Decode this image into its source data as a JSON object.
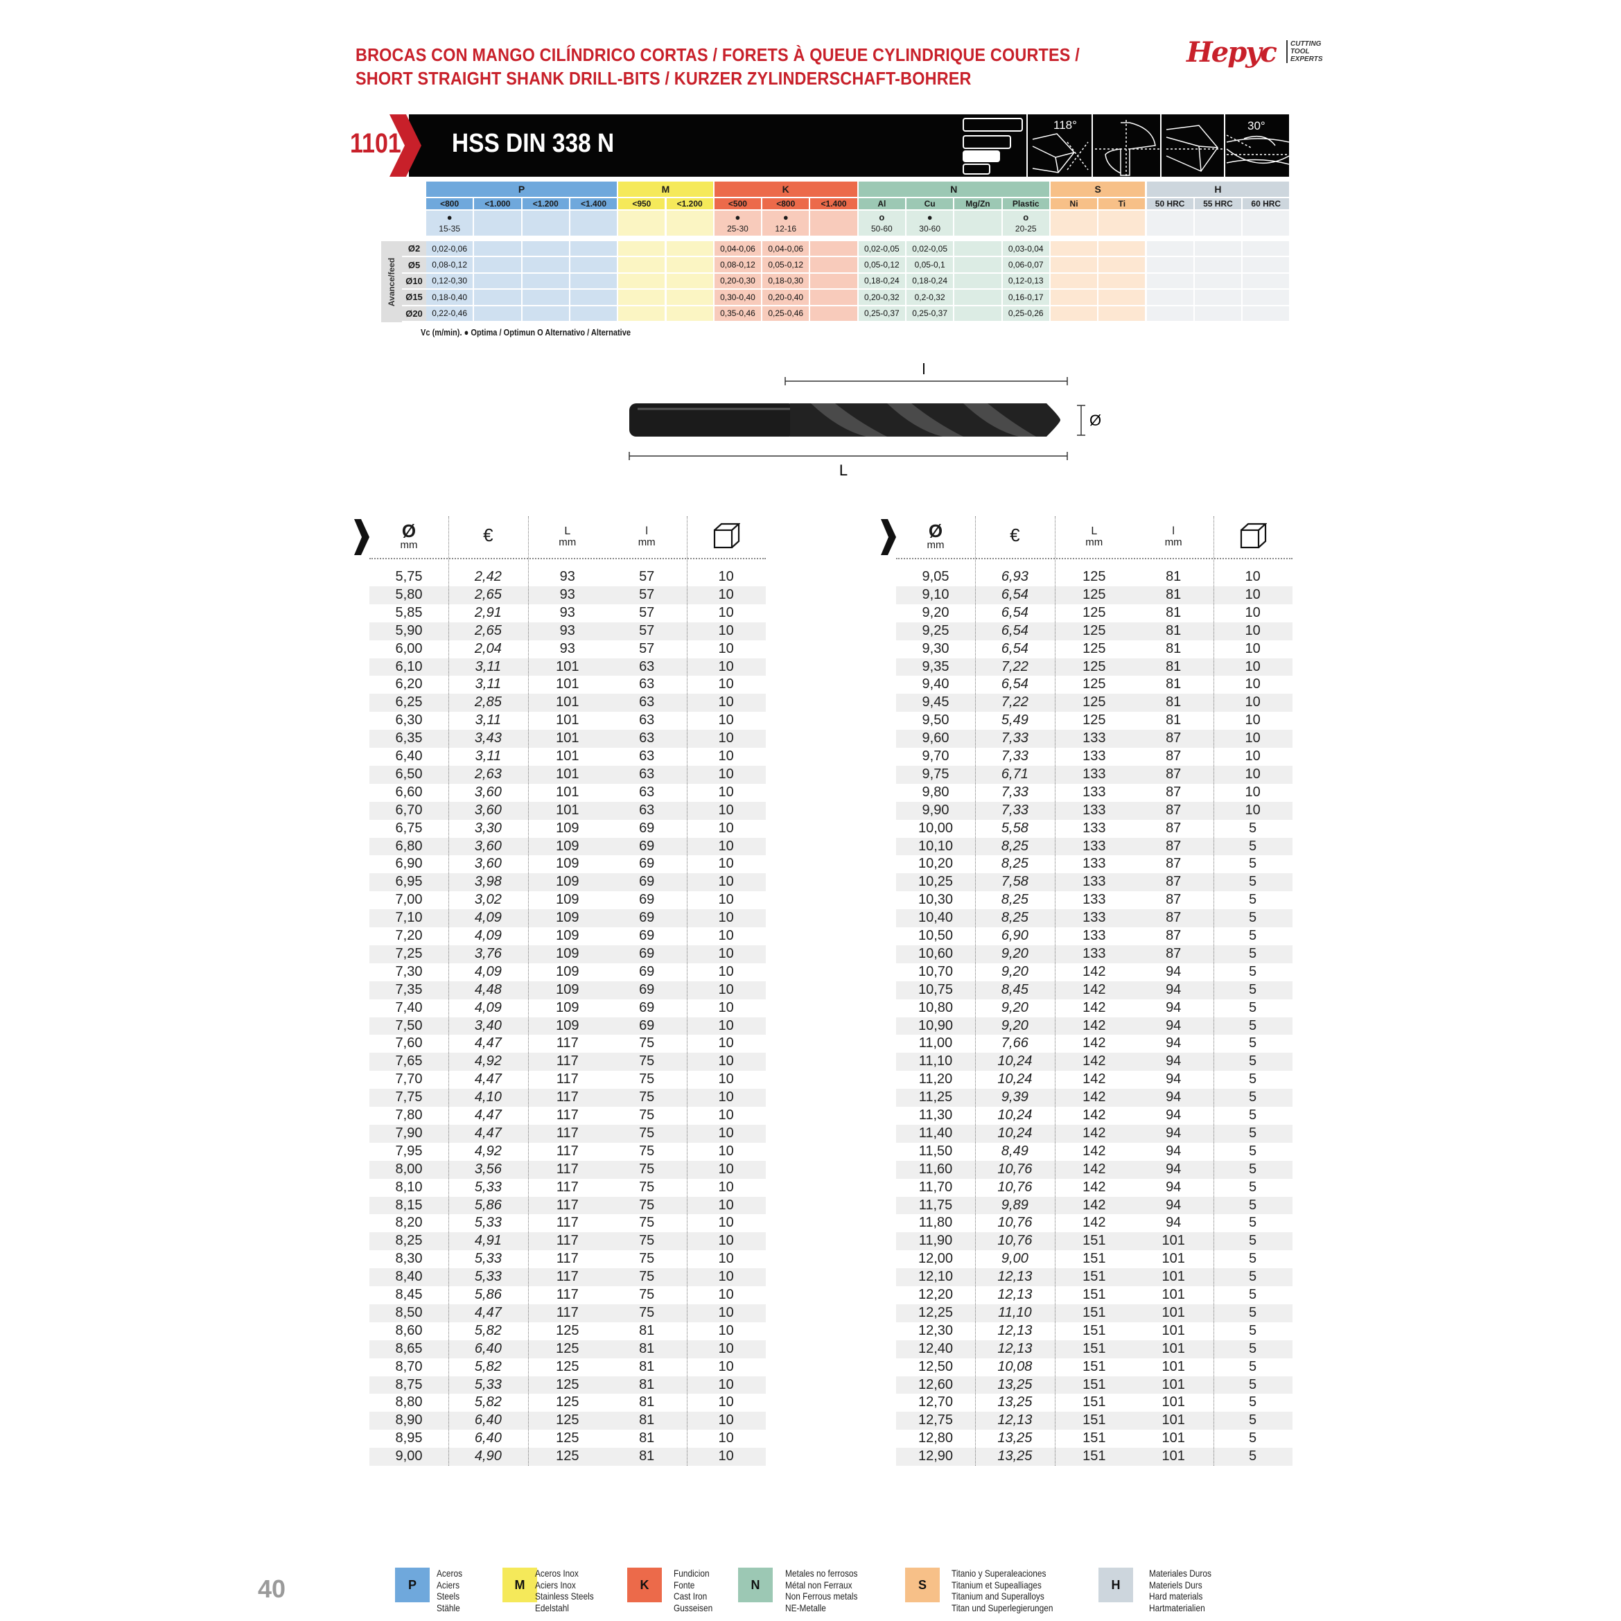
{
  "header": {
    "title_line1": "BROCAS CON MANGO CILÍNDRICO CORTAS / FORETS À QUEUE CYLINDRIQUE COURTES /",
    "title_line2": "SHORT STRAIGHT SHANK DRILL-BITS / KURZER ZYLINDERSCHAFT-BOHRER",
    "logo_text": "Hepyc",
    "logo_tagline": [
      "CUTTING",
      "TOOL",
      "EXPERTS"
    ],
    "brand_color": "#c8202a"
  },
  "banner": {
    "code": "1101",
    "product": "HSS DIN 338 N",
    "icons": [
      "length-series-icon",
      "point-angle-118-icon",
      "split-point-cross-section-icon",
      "drill-tip-icon",
      "helix-angle-30-icon"
    ],
    "point_angle": "118°",
    "helix_angle": "30°"
  },
  "materials": {
    "groups": [
      {
        "label": "P",
        "color": "#6fa8dc",
        "light": "#cfe0f0",
        "cols": [
          "<800",
          "<1.000",
          "<1.200",
          "<1.400"
        ]
      },
      {
        "label": "M",
        "color": "#f5e95a",
        "light": "#fbf5c3",
        "cols": [
          "<950",
          "<1.200"
        ]
      },
      {
        "label": "K",
        "color": "#ec6a4a",
        "light": "#f8cbbb",
        "cols": [
          "<500",
          "<800",
          "<1.400"
        ]
      },
      {
        "label": "N",
        "color": "#9cc8b4",
        "light": "#dcece4",
        "cols": [
          "Al",
          "Cu",
          "Mg/Zn",
          "Plastic"
        ]
      },
      {
        "label": "S",
        "color": "#f7c088",
        "light": "#fde7d2",
        "cols": [
          "Ni",
          "Ti"
        ]
      },
      {
        "label": "H",
        "color": "#cdd6dd",
        "light": "#eff1f3",
        "cols": [
          "50 HRC",
          "55 HRC",
          "60 HRC"
        ]
      }
    ],
    "vc": [
      {
        "mark": "optimal",
        "value": "15-35"
      },
      null,
      null,
      null,
      null,
      null,
      {
        "mark": "optimal",
        "value": "25-30"
      },
      {
        "mark": "optimal",
        "value": "12-16"
      },
      null,
      {
        "mark": "alternative",
        "value": "50-60"
      },
      {
        "mark": "optimal",
        "value": "30-60"
      },
      null,
      {
        "mark": "alternative",
        "value": "20-25"
      },
      null,
      null,
      null,
      null,
      null
    ],
    "feed_label": "Avance/feed",
    "feed_rows": [
      {
        "dia": "Ø2",
        "values": [
          "0,02-0,06",
          "",
          "",
          "",
          "",
          "",
          "0,04-0,06",
          "0,04-0,06",
          "",
          "0,02-0,05",
          "0,02-0,05",
          "",
          "0,03-0,04",
          "",
          "",
          "",
          "",
          ""
        ]
      },
      {
        "dia": "Ø5",
        "values": [
          "0,08-0,12",
          "",
          "",
          "",
          "",
          "",
          "0,08-0,12",
          "0,05-0,12",
          "",
          "0,05-0,12",
          "0,05-0,1",
          "",
          "0,06-0,07",
          "",
          "",
          "",
          "",
          ""
        ]
      },
      {
        "dia": "Ø10",
        "values": [
          "0,12-0,30",
          "",
          "",
          "",
          "",
          "",
          "0,20-0,30",
          "0,18-0,30",
          "",
          "0,18-0,24",
          "0,18-0,24",
          "",
          "0,12-0,13",
          "",
          "",
          "",
          "",
          ""
        ]
      },
      {
        "dia": "Ø15",
        "values": [
          "0,18-0,40",
          "",
          "",
          "",
          "",
          "",
          "0,30-0,40",
          "0,20-0,40",
          "",
          "0,20-0,32",
          "0,2-0,32",
          "",
          "0,16-0,17",
          "",
          "",
          "",
          "",
          ""
        ]
      },
      {
        "dia": "Ø20",
        "values": [
          "0,22-0,46",
          "",
          "",
          "",
          "",
          "",
          "0,35-0,46",
          "0,25-0,46",
          "",
          "0,25-0,37",
          "0,25-0,37",
          "",
          "0,25-0,26",
          "",
          "",
          "",
          "",
          ""
        ]
      }
    ],
    "legend_note": "Vc (m/min). ● Optima / Optimun  O Alternativo / Alternative"
  },
  "drawing": {
    "label_l": "l",
    "label_L": "L",
    "label_dia": "Ø"
  },
  "product_table": {
    "headers": [
      {
        "symbol": "Ø",
        "unit": "mm"
      },
      {
        "symbol": "€",
        "unit": ""
      },
      {
        "symbol": "L",
        "unit": "mm"
      },
      {
        "symbol": "l",
        "unit": "mm"
      },
      {
        "symbol": "package-icon",
        "unit": ""
      }
    ],
    "left_rows": [
      [
        "5,75",
        "2,42",
        "93",
        "57",
        "10"
      ],
      [
        "5,80",
        "2,65",
        "93",
        "57",
        "10"
      ],
      [
        "5,85",
        "2,91",
        "93",
        "57",
        "10"
      ],
      [
        "5,90",
        "2,65",
        "93",
        "57",
        "10"
      ],
      [
        "6,00",
        "2,04",
        "93",
        "57",
        "10"
      ],
      [
        "6,10",
        "3,11",
        "101",
        "63",
        "10"
      ],
      [
        "6,20",
        "3,11",
        "101",
        "63",
        "10"
      ],
      [
        "6,25",
        "2,85",
        "101",
        "63",
        "10"
      ],
      [
        "6,30",
        "3,11",
        "101",
        "63",
        "10"
      ],
      [
        "6,35",
        "3,43",
        "101",
        "63",
        "10"
      ],
      [
        "6,40",
        "3,11",
        "101",
        "63",
        "10"
      ],
      [
        "6,50",
        "2,63",
        "101",
        "63",
        "10"
      ],
      [
        "6,60",
        "3,60",
        "101",
        "63",
        "10"
      ],
      [
        "6,70",
        "3,60",
        "101",
        "63",
        "10"
      ],
      [
        "6,75",
        "3,30",
        "109",
        "69",
        "10"
      ],
      [
        "6,80",
        "3,60",
        "109",
        "69",
        "10"
      ],
      [
        "6,90",
        "3,60",
        "109",
        "69",
        "10"
      ],
      [
        "6,95",
        "3,98",
        "109",
        "69",
        "10"
      ],
      [
        "7,00",
        "3,02",
        "109",
        "69",
        "10"
      ],
      [
        "7,10",
        "4,09",
        "109",
        "69",
        "10"
      ],
      [
        "7,20",
        "4,09",
        "109",
        "69",
        "10"
      ],
      [
        "7,25",
        "3,76",
        "109",
        "69",
        "10"
      ],
      [
        "7,30",
        "4,09",
        "109",
        "69",
        "10"
      ],
      [
        "7,35",
        "4,48",
        "109",
        "69",
        "10"
      ],
      [
        "7,40",
        "4,09",
        "109",
        "69",
        "10"
      ],
      [
        "7,50",
        "3,40",
        "109",
        "69",
        "10"
      ],
      [
        "7,60",
        "4,47",
        "117",
        "75",
        "10"
      ],
      [
        "7,65",
        "4,92",
        "117",
        "75",
        "10"
      ],
      [
        "7,70",
        "4,47",
        "117",
        "75",
        "10"
      ],
      [
        "7,75",
        "4,10",
        "117",
        "75",
        "10"
      ],
      [
        "7,80",
        "4,47",
        "117",
        "75",
        "10"
      ],
      [
        "7,90",
        "4,47",
        "117",
        "75",
        "10"
      ],
      [
        "7,95",
        "4,92",
        "117",
        "75",
        "10"
      ],
      [
        "8,00",
        "3,56",
        "117",
        "75",
        "10"
      ],
      [
        "8,10",
        "5,33",
        "117",
        "75",
        "10"
      ],
      [
        "8,15",
        "5,86",
        "117",
        "75",
        "10"
      ],
      [
        "8,20",
        "5,33",
        "117",
        "75",
        "10"
      ],
      [
        "8,25",
        "4,91",
        "117",
        "75",
        "10"
      ],
      [
        "8,30",
        "5,33",
        "117",
        "75",
        "10"
      ],
      [
        "8,40",
        "5,33",
        "117",
        "75",
        "10"
      ],
      [
        "8,45",
        "5,86",
        "117",
        "75",
        "10"
      ],
      [
        "8,50",
        "4,47",
        "117",
        "75",
        "10"
      ],
      [
        "8,60",
        "5,82",
        "125",
        "81",
        "10"
      ],
      [
        "8,65",
        "6,40",
        "125",
        "81",
        "10"
      ],
      [
        "8,70",
        "5,82",
        "125",
        "81",
        "10"
      ],
      [
        "8,75",
        "5,33",
        "125",
        "81",
        "10"
      ],
      [
        "8,80",
        "5,82",
        "125",
        "81",
        "10"
      ],
      [
        "8,90",
        "6,40",
        "125",
        "81",
        "10"
      ],
      [
        "8,95",
        "6,40",
        "125",
        "81",
        "10"
      ],
      [
        "9,00",
        "4,90",
        "125",
        "81",
        "10"
      ]
    ],
    "right_rows": [
      [
        "9,05",
        "6,93",
        "125",
        "81",
        "10"
      ],
      [
        "9,10",
        "6,54",
        "125",
        "81",
        "10"
      ],
      [
        "9,20",
        "6,54",
        "125",
        "81",
        "10"
      ],
      [
        "9,25",
        "6,54",
        "125",
        "81",
        "10"
      ],
      [
        "9,30",
        "6,54",
        "125",
        "81",
        "10"
      ],
      [
        "9,35",
        "7,22",
        "125",
        "81",
        "10"
      ],
      [
        "9,40",
        "6,54",
        "125",
        "81",
        "10"
      ],
      [
        "9,45",
        "7,22",
        "125",
        "81",
        "10"
      ],
      [
        "9,50",
        "5,49",
        "125",
        "81",
        "10"
      ],
      [
        "9,60",
        "7,33",
        "133",
        "87",
        "10"
      ],
      [
        "9,70",
        "7,33",
        "133",
        "87",
        "10"
      ],
      [
        "9,75",
        "6,71",
        "133",
        "87",
        "10"
      ],
      [
        "9,80",
        "7,33",
        "133",
        "87",
        "10"
      ],
      [
        "9,90",
        "7,33",
        "133",
        "87",
        "10"
      ],
      [
        "10,00",
        "5,58",
        "133",
        "87",
        "5"
      ],
      [
        "10,10",
        "8,25",
        "133",
        "87",
        "5"
      ],
      [
        "10,20",
        "8,25",
        "133",
        "87",
        "5"
      ],
      [
        "10,25",
        "7,58",
        "133",
        "87",
        "5"
      ],
      [
        "10,30",
        "8,25",
        "133",
        "87",
        "5"
      ],
      [
        "10,40",
        "8,25",
        "133",
        "87",
        "5"
      ],
      [
        "10,50",
        "6,90",
        "133",
        "87",
        "5"
      ],
      [
        "10,60",
        "9,20",
        "133",
        "87",
        "5"
      ],
      [
        "10,70",
        "9,20",
        "142",
        "94",
        "5"
      ],
      [
        "10,75",
        "8,45",
        "142",
        "94",
        "5"
      ],
      [
        "10,80",
        "9,20",
        "142",
        "94",
        "5"
      ],
      [
        "10,90",
        "9,20",
        "142",
        "94",
        "5"
      ],
      [
        "11,00",
        "7,66",
        "142",
        "94",
        "5"
      ],
      [
        "11,10",
        "10,24",
        "142",
        "94",
        "5"
      ],
      [
        "11,20",
        "10,24",
        "142",
        "94",
        "5"
      ],
      [
        "11,25",
        "9,39",
        "142",
        "94",
        "5"
      ],
      [
        "11,30",
        "10,24",
        "142",
        "94",
        "5"
      ],
      [
        "11,40",
        "10,24",
        "142",
        "94",
        "5"
      ],
      [
        "11,50",
        "8,49",
        "142",
        "94",
        "5"
      ],
      [
        "11,60",
        "10,76",
        "142",
        "94",
        "5"
      ],
      [
        "11,70",
        "10,76",
        "142",
        "94",
        "5"
      ],
      [
        "11,75",
        "9,89",
        "142",
        "94",
        "5"
      ],
      [
        "11,80",
        "10,76",
        "142",
        "94",
        "5"
      ],
      [
        "11,90",
        "10,76",
        "151",
        "101",
        "5"
      ],
      [
        "12,00",
        "9,00",
        "151",
        "101",
        "5"
      ],
      [
        "12,10",
        "12,13",
        "151",
        "101",
        "5"
      ],
      [
        "12,20",
        "12,13",
        "151",
        "101",
        "5"
      ],
      [
        "12,25",
        "11,10",
        "151",
        "101",
        "5"
      ],
      [
        "12,30",
        "12,13",
        "151",
        "101",
        "5"
      ],
      [
        "12,40",
        "12,13",
        "151",
        "101",
        "5"
      ],
      [
        "12,50",
        "10,08",
        "151",
        "101",
        "5"
      ],
      [
        "12,60",
        "13,25",
        "151",
        "101",
        "5"
      ],
      [
        "12,70",
        "13,25",
        "151",
        "101",
        "5"
      ],
      [
        "12,75",
        "12,13",
        "151",
        "101",
        "5"
      ],
      [
        "12,80",
        "13,25",
        "151",
        "101",
        "5"
      ],
      [
        "12,90",
        "13,25",
        "151",
        "101",
        "5"
      ]
    ]
  },
  "footer": {
    "page_number": "40",
    "legend": [
      {
        "code": "P",
        "color": "#6fa8dc",
        "lines": [
          "Aceros",
          "Aciers",
          "Steels",
          "Stähle"
        ]
      },
      {
        "code": "M",
        "color": "#f5e95a",
        "lines": [
          "Aceros Inox",
          "Aciers Inox",
          "Stainless Steels",
          "Edelstahl"
        ]
      },
      {
        "code": "K",
        "color": "#ec6a4a",
        "lines": [
          "Fundicion",
          "Fonte",
          "Cast Iron",
          "Gusseisen"
        ]
      },
      {
        "code": "N",
        "color": "#9cc8b4",
        "lines": [
          "Metales no ferrosos",
          "Métal non Ferraux",
          "Non Ferrous metals",
          "NE-Metalle"
        ]
      },
      {
        "code": "S",
        "color": "#f7c088",
        "lines": [
          "Titanio y Superaleaciones",
          "Titanium et Supealliages",
          "Titanium and Superalloys",
          "Titan und Superlegierungen"
        ]
      },
      {
        "code": "H",
        "color": "#cdd6dd",
        "lines": [
          "Materiales Duros",
          "Materiels Durs",
          "Hard materials",
          "Hartmaterialien"
        ]
      }
    ]
  }
}
